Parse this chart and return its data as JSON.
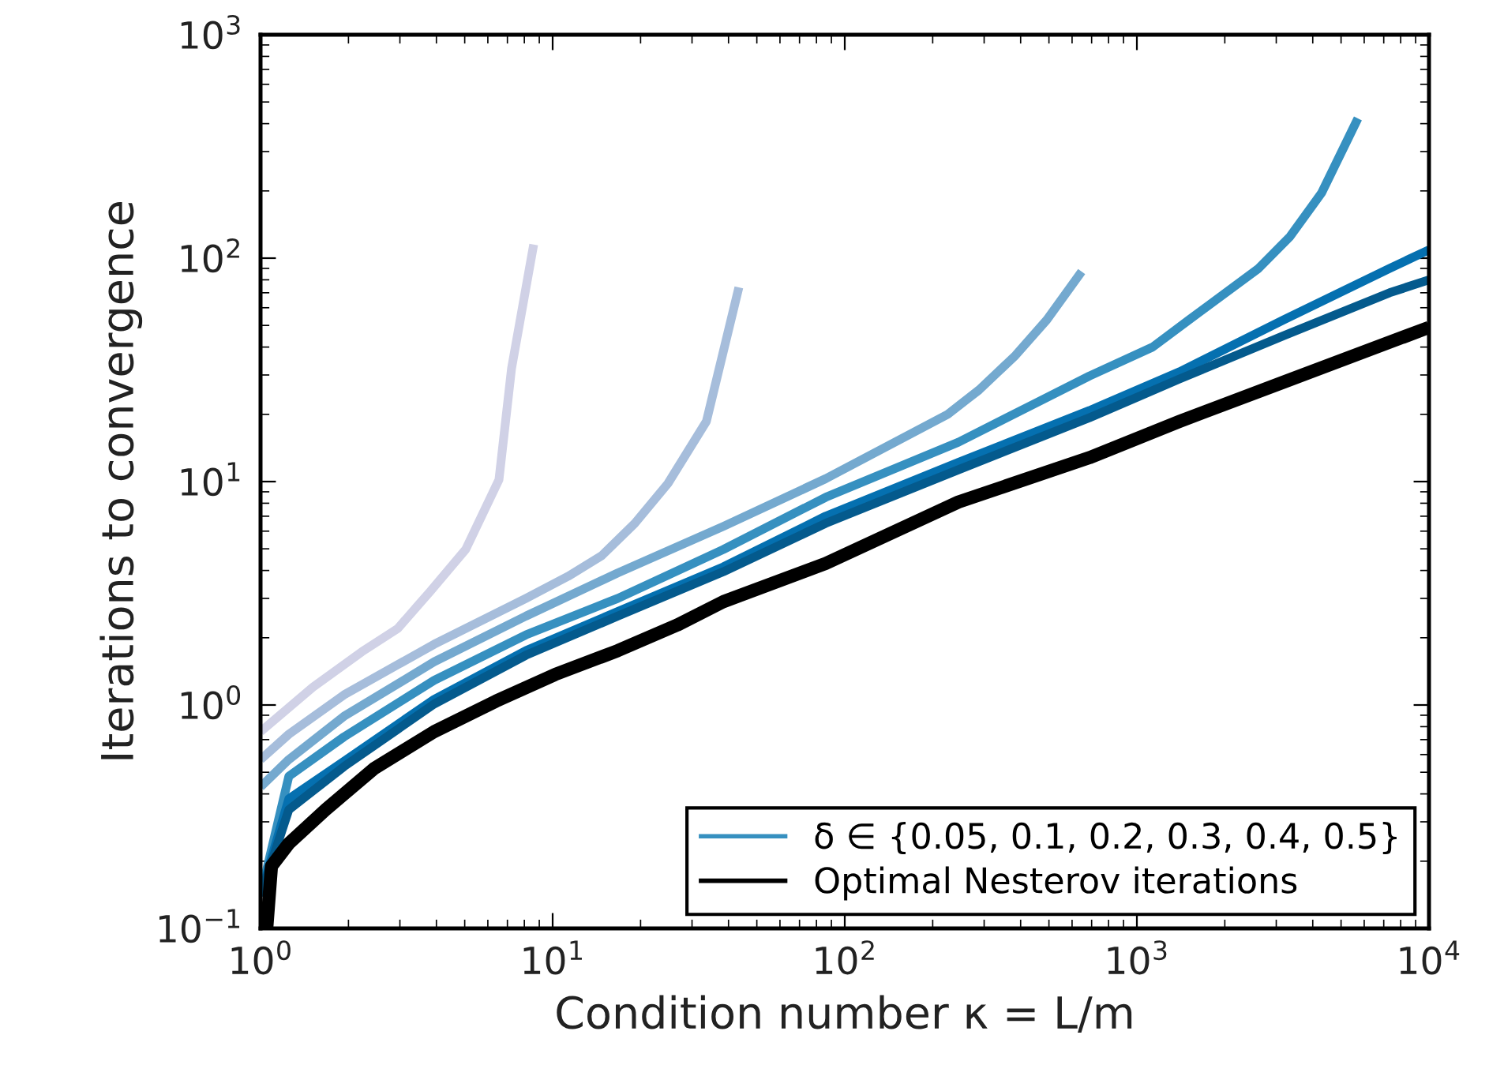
{
  "chart_data": {
    "type": "line",
    "xlabel": "Condition number κ = L/m",
    "ylabel": "Iterations to convergence",
    "log": "xy",
    "grid": false,
    "legend": "bottom right",
    "xlim": [
      1,
      10000
    ],
    "ylim": [
      0.1,
      1000
    ],
    "xticks": [
      {
        "value": 1,
        "label": "10$^{0}$"
      },
      {
        "value": 10,
        "label": "10$^{1}$"
      },
      {
        "value": 100,
        "label": "10$^{2}$"
      },
      {
        "value": 1000,
        "label": "10$^{3}$"
      },
      {
        "value": 10000,
        "label": "10$^{4}$"
      }
    ],
    "yticks": [
      {
        "value": 0.1,
        "label": "10$^{−1}$"
      },
      {
        "value": 1,
        "label": "10$^{0}$"
      },
      {
        "value": 10,
        "label": "10$^{1}$"
      },
      {
        "value": 100,
        "label": "10$^{2}$"
      },
      {
        "value": 1000,
        "label": "10$^{3}$"
      }
    ],
    "series": [
      {
        "color": "#d0d1e6",
        "x": [
          1,
          1.51,
          2.22,
          2.95,
          3.79,
          5.04,
          6.55,
          7.23,
          8.61
        ],
        "values": [
          0.76,
          1.2,
          1.73,
          2.2,
          3.2,
          4.97,
          10.2,
          32,
          115
        ]
      },
      {
        "color": "#a6bddb",
        "x": [
          1,
          1.25,
          1.93,
          3.93,
          8.1,
          11.3,
          14.7,
          19.1,
          24.8,
          33.6,
          43.4
        ],
        "values": [
          0.57,
          0.74,
          1.11,
          1.87,
          3.0,
          3.77,
          4.65,
          6.5,
          9.8,
          18.6,
          74
        ]
      },
      {
        "color": "#74a9cf",
        "x": [
          1,
          1.25,
          1.93,
          3.93,
          8.1,
          16.7,
          38.4,
          86,
          225,
          288,
          384,
          492,
          647
        ],
        "values": [
          0.43,
          0.57,
          0.89,
          1.56,
          2.5,
          3.9,
          6.3,
          10.3,
          20,
          25.7,
          36.7,
          53,
          87
        ]
      },
      {
        "name": "δ ∈ {0.05, 0.1, 0.2, 0.3, 0.4, 0.5}",
        "color": "#3690c0",
        "x": [
          1,
          1.25,
          1.93,
          3.93,
          8.1,
          16.7,
          38.4,
          86,
          245,
          688,
          1132,
          1510,
          2610,
          3345,
          4290,
          5710
        ],
        "values": [
          0.14,
          0.48,
          0.72,
          1.29,
          2.06,
          3.0,
          4.97,
          8.5,
          15.0,
          29.7,
          40,
          53,
          90,
          125,
          196,
          422
        ]
      },
      {
        "color": "#0570b0",
        "x": [
          1,
          1.25,
          1.93,
          3.93,
          8.1,
          16.7,
          38.4,
          86,
          245,
          688,
          1400,
          3185,
          7330,
          10000
        ],
        "values": [
          0.14,
          0.38,
          0.56,
          1.06,
          1.75,
          2.62,
          4.15,
          7.0,
          12.2,
          20.8,
          31,
          53,
          90,
          109
        ]
      },
      {
        "color": "#045a8d",
        "x": [
          1,
          1.25,
          1.93,
          3.93,
          8.1,
          16.7,
          38.4,
          86,
          245,
          688,
          1400,
          3185,
          7330,
          10000
        ],
        "values": [
          0.14,
          0.34,
          0.53,
          1.01,
          1.67,
          2.5,
          3.95,
          6.5,
          11.3,
          19.3,
          28.8,
          45,
          70,
          80
        ]
      },
      {
        "name": "Optimal Nesterov iterations",
        "color": "#000000",
        "x": [
          1.05,
          1.09,
          1.25,
          1.67,
          2.45,
          3.93,
          6.39,
          10.2,
          16.7,
          26.7,
          38.4,
          86,
          245,
          688,
          1400,
          3185,
          10000
        ],
        "values": [
          0.1,
          0.19,
          0.24,
          0.34,
          0.52,
          0.76,
          1.04,
          1.37,
          1.75,
          2.28,
          2.9,
          4.3,
          8.1,
          12.8,
          18.6,
          27.9,
          49
        ]
      }
    ]
  }
}
